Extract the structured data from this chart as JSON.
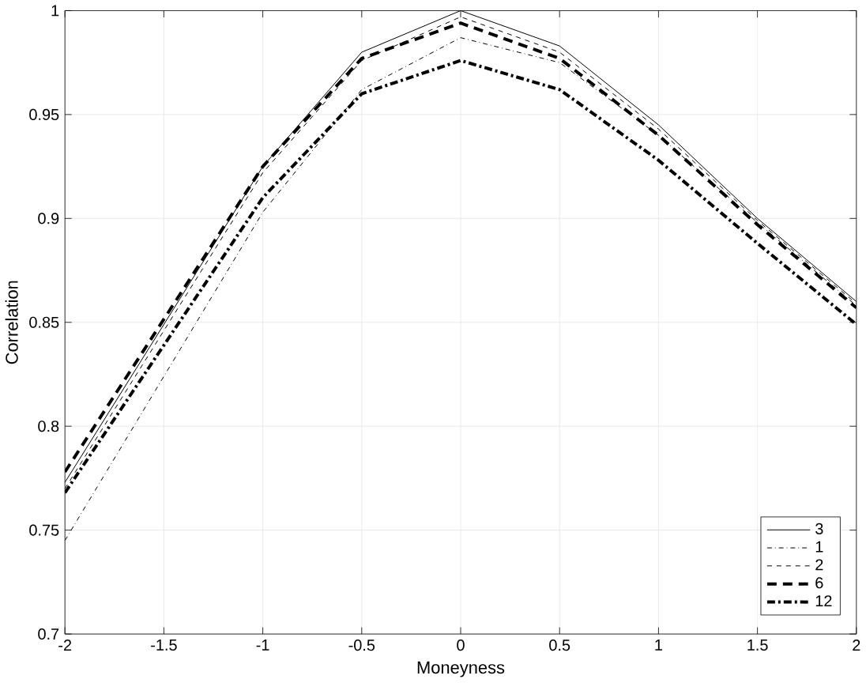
{
  "chart_data": {
    "type": "line",
    "xlabel": "Moneyness",
    "ylabel": "Correlation",
    "x": [
      -2,
      -1,
      -0.5,
      0,
      0.5,
      1,
      1.5,
      2
    ],
    "series": [
      {
        "name": "3",
        "color": "#000000",
        "line_style": "solid",
        "values": [
          0.773,
          0.925,
          0.98,
          1.0,
          0.983,
          0.945,
          0.9,
          0.86
        ]
      },
      {
        "name": "1",
        "color": "#000000",
        "line_style": "dashdot",
        "values": [
          0.745,
          0.903,
          0.962,
          0.987,
          0.975,
          0.94,
          0.898,
          0.858
        ]
      },
      {
        "name": "2",
        "color": "#000000",
        "line_style": "dashed",
        "values": [
          0.77,
          0.922,
          0.976,
          0.997,
          0.98,
          0.943,
          0.899,
          0.859
        ]
      },
      {
        "name": "6",
        "color": "#000000",
        "line_style": "dashed",
        "values": [
          0.778,
          0.925,
          0.977,
          0.994,
          0.977,
          0.94,
          0.897,
          0.857
        ]
      },
      {
        "name": "12",
        "color": "#000000",
        "line_style": "dashdot",
        "values": [
          0.768,
          0.91,
          0.96,
          0.976,
          0.962,
          0.928,
          0.888,
          0.849
        ]
      }
    ],
    "xlim": [
      -2,
      2
    ],
    "ylim": [
      0.7,
      1
    ],
    "xticks": [
      -2,
      -1.5,
      -1,
      -0.5,
      0,
      0.5,
      1,
      1.5,
      2
    ],
    "yticks": [
      0.7,
      0.75,
      0.8,
      0.85,
      0.9,
      0.95,
      1
    ],
    "grid": true,
    "legend": "bottom right",
    "marker": "none"
  }
}
